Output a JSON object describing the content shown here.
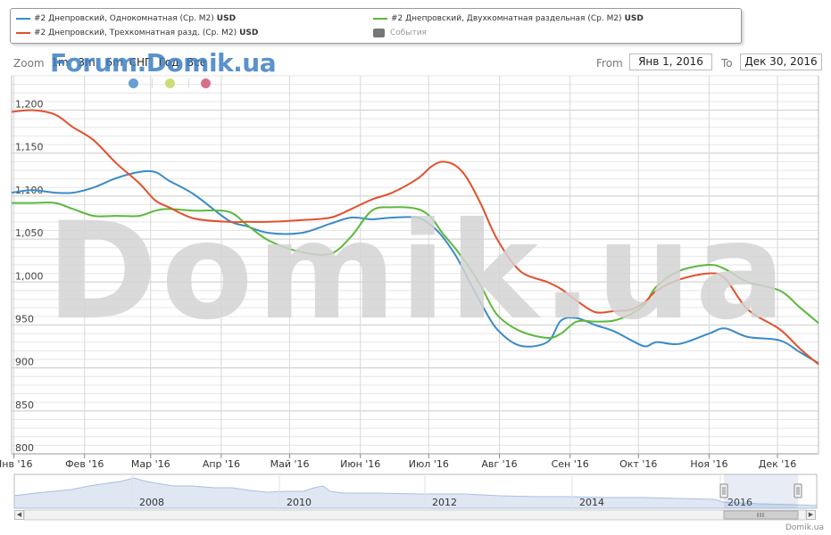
{
  "legend": {
    "items": [
      {
        "label": "#2 Днепровский, Однокомнатная (Ср. М2)",
        "unit": "USD",
        "color": "#3a8bc8"
      },
      {
        "label": "#2 Днепровский, Двухкомнатная раздельная (Ср. М2)",
        "unit": "USD",
        "color": "#5cb83c"
      },
      {
        "label": "#2 Днепровский, Трехкомнатная разд. (Ср. М2)",
        "unit": "USD",
        "color": "#e2502c"
      },
      {
        "label": "События",
        "unit": "",
        "color": "#777777"
      }
    ]
  },
  "range_selector": {
    "zoom_label": "Zoom",
    "buttons": [
      "1m",
      "3m",
      "6m",
      "СНГ",
      "Год",
      "Все"
    ],
    "from_label": "From",
    "from_value": "Янв 1, 2016",
    "to_label": "To",
    "to_value": "Дек 30, 2016"
  },
  "overlay_text": {
    "forum": "Forum.Domik.ua",
    "watermark": "Domik.ua",
    "credit": "Domik.ua"
  },
  "event_markers": [
    "#6a9fd4",
    "#cfdc7a",
    "#d9708a"
  ],
  "chart_data": {
    "type": "line",
    "x_ticks": [
      "Янв '16",
      "Фев '16",
      "Мар '16",
      "Апр '16",
      "Май '16",
      "Июн '16",
      "Июл '16",
      "Авг '16",
      "Сен '16",
      "Окт '16",
      "Ноя '16",
      "Дек '16"
    ],
    "y_ticks": [
      800,
      850,
      900,
      950,
      1000,
      1050,
      1100,
      1150,
      1200
    ],
    "ylim": [
      800,
      1240
    ],
    "xlim": [
      -1,
      353
    ],
    "grid": true,
    "series": [
      {
        "name": "#2 Днепровский, Однокомнатная (Ср. М2)",
        "color": "#3a8bc8",
        "x": [
          -1,
          8,
          18,
          26,
          35,
          45,
          55,
          62,
          68,
          79,
          94,
          102,
          112,
          126,
          139,
          148,
          157,
          166,
          177,
          183,
          188,
          194,
          199,
          205,
          212,
          222,
          234,
          240,
          247,
          255,
          263,
          271,
          277,
          282,
          292,
          305,
          312,
          322,
          336,
          345,
          354
        ],
        "y": [
          1104,
          1107,
          1104,
          1104,
          1110,
          1121,
          1128,
          1128,
          1118,
          1102,
          1072,
          1065,
          1057,
          1057,
          1068,
          1075,
          1073,
          1075,
          1075,
          1066,
          1053,
          1030,
          1005,
          975,
          945,
          926,
          930,
          955,
          958,
          950,
          943,
          932,
          925,
          930,
          928,
          940,
          946,
          936,
          932,
          918,
          904
        ]
      },
      {
        "name": "#2 Днепровский, Двухкомнатная раздельная (Ср. М2)",
        "color": "#5cb83c",
        "x": [
          -1,
          8,
          18,
          26,
          35,
          45,
          55,
          62,
          68,
          79,
          94,
          102,
          112,
          126,
          139,
          148,
          157,
          166,
          177,
          183,
          188,
          194,
          199,
          205,
          212,
          222,
          234,
          240,
          247,
          255,
          263,
          271,
          277,
          282,
          292,
          305,
          312,
          322,
          336,
          345,
          354
        ],
        "y": [
          1092,
          1092,
          1092,
          1085,
          1077,
          1077,
          1077,
          1083,
          1085,
          1083,
          1082,
          1067,
          1048,
          1035,
          1033,
          1053,
          1083,
          1087,
          1085,
          1075,
          1057,
          1038,
          1020,
          995,
          962,
          943,
          935,
          940,
          954,
          954,
          955,
          963,
          975,
          995,
          1013,
          1020,
          1015,
          1000,
          990,
          970,
          950
        ]
      },
      {
        "name": "#2 Днепровский, Трехкомнатная разд. (Ср. М2)",
        "color": "#e2502c",
        "x": [
          -1,
          8,
          18,
          26,
          35,
          45,
          55,
          62,
          68,
          79,
          94,
          102,
          112,
          126,
          139,
          148,
          157,
          166,
          177,
          183,
          188,
          194,
          199,
          205,
          212,
          222,
          234,
          240,
          247,
          255,
          263,
          271,
          277,
          282,
          292,
          305,
          312,
          322,
          336,
          345,
          354
        ],
        "y": [
          1198,
          1200,
          1195,
          1180,
          1165,
          1138,
          1115,
          1095,
          1087,
          1074,
          1070,
          1070,
          1070,
          1072,
          1075,
          1085,
          1096,
          1104,
          1120,
          1134,
          1140,
          1135,
          1120,
          1090,
          1050,
          1013,
          1000,
          992,
          978,
          965,
          966,
          968,
          977,
          990,
          1003,
          1010,
          1004,
          968,
          945,
          922,
          902
        ]
      }
    ],
    "navigator": {
      "labels": [
        "2008",
        "2010",
        "2012",
        "2014",
        "2016"
      ]
    }
  }
}
